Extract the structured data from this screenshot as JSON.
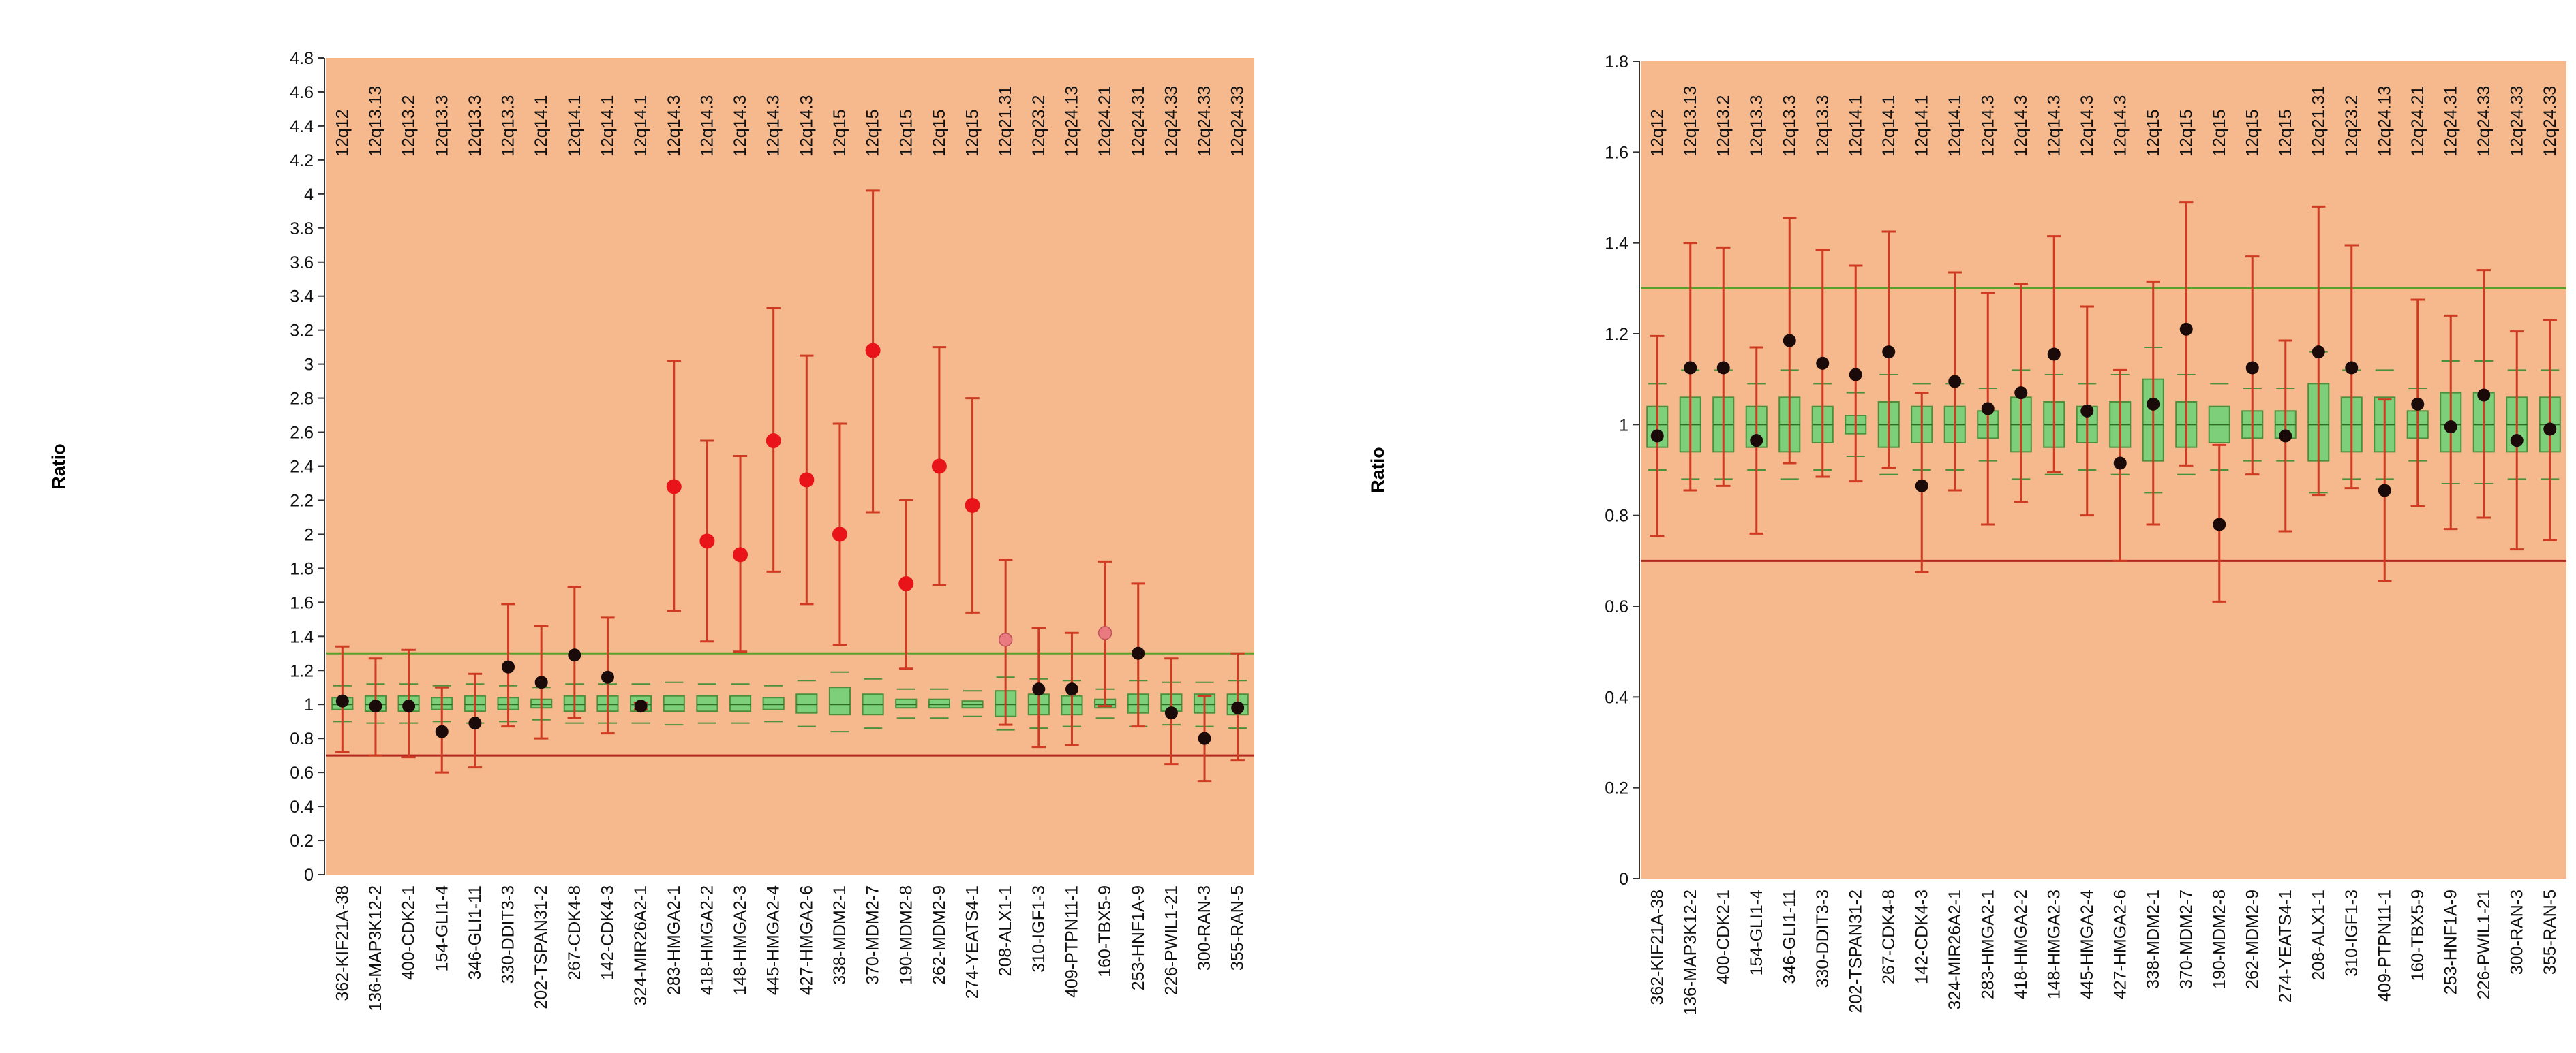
{
  "colors": {
    "plot_background": "#f5b98d",
    "upper_threshold_line": "#5aa02c",
    "lower_threshold_line": "#b0281e",
    "reference_box_fill": "#7dcf7a",
    "reference_box_edge": "#4c8f3d",
    "error_bar": "#cf3a22",
    "point_normal": "#1a0a0a",
    "point_gain": "#e8141a",
    "point_borderline": "#e87a80"
  },
  "chart_data": [
    {
      "type": "box-and-error-bar",
      "ylabel": "Ratio",
      "xlabel": "",
      "ylim": [
        0,
        4.8
      ],
      "yticks": [
        "0",
        "0.2",
        "0.4",
        "0.6",
        "0.8",
        "1",
        "1.2",
        "1.4",
        "1.6",
        "1.8",
        "2",
        "2.2",
        "2.4",
        "2.6",
        "2.8",
        "3",
        "3.2",
        "3.4",
        "3.6",
        "3.8",
        "4",
        "4.2",
        "4.4",
        "4.6",
        "4.8"
      ],
      "thresholds": {
        "upper": 1.3,
        "lower": 0.7
      },
      "categories": [
        "362-KIF21A-38",
        "136-MAP3K12-2",
        "400-CDK2-1",
        "154-GLI1-4",
        "346-GLI1-11",
        "330-DDIT3-3",
        "202-TSPAN31-2",
        "267-CDK4-8",
        "142-CDK4-3",
        "324-MIR26A2-1",
        "283-HMGA2-1",
        "418-HMGA2-2",
        "148-HMGA2-3",
        "445-HMGA2-4",
        "427-HMGA2-6",
        "338-MDM2-1",
        "370-MDM2-7",
        "190-MDM2-8",
        "262-MDM2-9",
        "274-YEATS4-1",
        "208-ALX1-1",
        "310-IGF1-3",
        "409-PTPN11-1",
        "160-TBX5-9",
        "253-HNF1A-9",
        "226-PWIL1-21",
        "300-RAN-3",
        "355-RAN-5"
      ],
      "bands": [
        "12q12",
        "12q13.13",
        "12q13.2",
        "12q13.3",
        "12q13.3",
        "12q13.3",
        "12q14.1",
        "12q14.1",
        "12q14.1",
        "12q14.1",
        "12q14.3",
        "12q14.3",
        "12q14.3",
        "12q14.3",
        "12q14.3",
        "12q15",
        "12q15",
        "12q15",
        "12q15",
        "12q15",
        "12q21.31",
        "12q23.2",
        "12q24.13",
        "12q24.21",
        "12q24.31",
        "12q24.33",
        "12q24.33",
        "12q24.33"
      ],
      "ratio": [
        1.02,
        0.99,
        0.99,
        0.84,
        0.89,
        1.22,
        1.13,
        1.29,
        1.16,
        0.99,
        2.28,
        1.96,
        1.88,
        2.55,
        2.32,
        2.0,
        3.08,
        1.71,
        2.4,
        2.17,
        1.38,
        1.09,
        1.09,
        1.42,
        1.3,
        0.95,
        0.8,
        0.98
      ],
      "error_low": [
        0.72,
        0.7,
        0.69,
        0.6,
        0.63,
        0.87,
        0.8,
        0.92,
        0.83,
        0.97,
        1.55,
        1.37,
        1.31,
        1.78,
        1.59,
        1.35,
        2.13,
        1.21,
        1.7,
        1.54,
        0.88,
        0.75,
        0.76,
        0.99,
        0.87,
        0.65,
        0.55,
        0.67
      ],
      "error_high": [
        1.34,
        1.27,
        1.32,
        1.1,
        1.18,
        1.59,
        1.46,
        1.69,
        1.51,
        1.01,
        3.02,
        2.55,
        2.46,
        3.33,
        3.05,
        2.65,
        4.02,
        2.2,
        3.1,
        2.8,
        1.85,
        1.45,
        1.42,
        1.84,
        1.71,
        1.27,
        1.05,
        1.3
      ],
      "ref_q1": [
        0.97,
        0.96,
        0.96,
        0.97,
        0.96,
        0.97,
        0.98,
        0.96,
        0.96,
        0.96,
        0.96,
        0.96,
        0.96,
        0.97,
        0.95,
        0.94,
        0.94,
        0.98,
        0.98,
        0.98,
        0.93,
        0.94,
        0.94,
        0.98,
        0.95,
        0.96,
        0.95,
        0.94
      ],
      "ref_q3": [
        1.04,
        1.05,
        1.05,
        1.04,
        1.05,
        1.04,
        1.03,
        1.05,
        1.05,
        1.05,
        1.05,
        1.05,
        1.05,
        1.04,
        1.06,
        1.1,
        1.06,
        1.03,
        1.03,
        1.02,
        1.08,
        1.06,
        1.05,
        1.03,
        1.06,
        1.06,
        1.06,
        1.06
      ],
      "ref_median": [
        1.0,
        1.0,
        1.0,
        1.0,
        1.0,
        1.0,
        1.0,
        1.0,
        1.0,
        1.0,
        1.0,
        1.0,
        1.0,
        1.0,
        1.0,
        1.0,
        1.0,
        1.0,
        1.0,
        1.0,
        1.0,
        1.0,
        1.0,
        1.0,
        1.0,
        1.0,
        1.0,
        1.0
      ],
      "ref_whisker_low": [
        0.9,
        0.89,
        0.89,
        0.9,
        0.89,
        0.9,
        0.91,
        0.89,
        0.89,
        0.89,
        0.88,
        0.89,
        0.89,
        0.9,
        0.87,
        0.84,
        0.86,
        0.92,
        0.92,
        0.93,
        0.85,
        0.86,
        0.87,
        0.92,
        0.87,
        0.88,
        0.87,
        0.86
      ],
      "ref_whisker_high": [
        1.11,
        1.12,
        1.12,
        1.11,
        1.12,
        1.11,
        1.1,
        1.12,
        1.12,
        1.12,
        1.13,
        1.12,
        1.12,
        1.11,
        1.14,
        1.19,
        1.15,
        1.09,
        1.09,
        1.08,
        1.16,
        1.15,
        1.14,
        1.09,
        1.14,
        1.13,
        1.13,
        1.14
      ],
      "point_status": [
        "normal",
        "normal",
        "normal",
        "normal",
        "normal",
        "normal",
        "normal",
        "normal",
        "normal",
        "normal",
        "gain",
        "gain",
        "gain",
        "gain",
        "gain",
        "gain",
        "gain",
        "gain",
        "gain",
        "gain",
        "borderline",
        "normal",
        "normal",
        "borderline",
        "normal",
        "normal",
        "normal",
        "normal"
      ]
    },
    {
      "type": "box-and-error-bar",
      "ylabel": "Ratio",
      "xlabel": "",
      "ylim": [
        0,
        1.8
      ],
      "yticks": [
        "0",
        "0.2",
        "0.4",
        "0.6",
        "0.8",
        "1",
        "1.2",
        "1.4",
        "1.6",
        "1.8"
      ],
      "thresholds": {
        "upper": 1.3,
        "lower": 0.7
      },
      "categories": [
        "362-KIF21A-38",
        "136-MAP3K12-2",
        "400-CDK2-1",
        "154-GLI1-4",
        "346-GLI1-11",
        "330-DDIT3-3",
        "202-TSPAN31-2",
        "267-CDK4-8",
        "142-CDK4-3",
        "324-MIR26A2-1",
        "283-HMGA2-1",
        "418-HMGA2-2",
        "148-HMGA2-3",
        "445-HMGA2-4",
        "427-HMGA2-6",
        "338-MDM2-1",
        "370-MDM2-7",
        "190-MDM2-8",
        "262-MDM2-9",
        "274-YEATS4-1",
        "208-ALX1-1",
        "310-IGF1-3",
        "409-PTPN11-1",
        "160-TBX5-9",
        "253-HNF1A-9",
        "226-PWIL1-21",
        "300-RAN-3",
        "355-RAN-5"
      ],
      "bands": [
        "12q12",
        "12q13.13",
        "12q13.2",
        "12q13.3",
        "12q13.3",
        "12q13.3",
        "12q14.1",
        "12q14.1",
        "12q14.1",
        "12q14.1",
        "12q14.3",
        "12q14.3",
        "12q14.3",
        "12q14.3",
        "12q14.3",
        "12q15",
        "12q15",
        "12q15",
        "12q15",
        "12q15",
        "12q21.31",
        "12q23.2",
        "12q24.13",
        "12q24.21",
        "12q24.31",
        "12q24.33",
        "12q24.33",
        "12q24.33"
      ],
      "ratio": [
        0.975,
        1.125,
        1.125,
        0.965,
        1.185,
        1.135,
        1.11,
        1.16,
        0.865,
        1.095,
        1.035,
        1.07,
        1.155,
        1.03,
        0.915,
        1.045,
        1.21,
        0.78,
        1.125,
        0.975,
        1.16,
        1.125,
        0.855,
        1.045,
        0.995,
        1.065,
        0.965,
        0.99
      ],
      "error_low": [
        0.755,
        0.855,
        0.865,
        0.76,
        0.915,
        0.885,
        0.875,
        0.905,
        0.675,
        0.855,
        0.78,
        0.83,
        0.895,
        0.8,
        0.7,
        0.78,
        0.91,
        0.61,
        0.89,
        0.765,
        0.845,
        0.86,
        0.655,
        0.82,
        0.77,
        0.795,
        0.725,
        0.745
      ],
      "error_high": [
        1.195,
        1.4,
        1.39,
        1.17,
        1.455,
        1.385,
        1.35,
        1.425,
        1.07,
        1.335,
        1.29,
        1.31,
        1.415,
        1.26,
        1.12,
        1.315,
        1.49,
        0.955,
        1.37,
        1.185,
        1.48,
        1.395,
        1.055,
        1.275,
        1.24,
        1.34,
        1.205,
        1.23
      ],
      "ref_q1": [
        0.95,
        0.94,
        0.94,
        0.95,
        0.94,
        0.96,
        0.98,
        0.95,
        0.96,
        0.96,
        0.97,
        0.94,
        0.95,
        0.96,
        0.95,
        0.92,
        0.95,
        0.96,
        0.97,
        0.97,
        0.92,
        0.94,
        0.94,
        0.97,
        0.94,
        0.94,
        0.94,
        0.94
      ],
      "ref_q3": [
        1.04,
        1.06,
        1.06,
        1.04,
        1.06,
        1.04,
        1.02,
        1.05,
        1.04,
        1.04,
        1.03,
        1.06,
        1.05,
        1.04,
        1.05,
        1.1,
        1.05,
        1.04,
        1.03,
        1.03,
        1.09,
        1.06,
        1.06,
        1.03,
        1.07,
        1.07,
        1.06,
        1.06
      ],
      "ref_median": [
        1.0,
        1.0,
        1.0,
        1.0,
        1.0,
        1.0,
        1.0,
        1.0,
        1.0,
        1.0,
        1.0,
        1.0,
        1.0,
        1.0,
        1.0,
        1.0,
        1.0,
        1.0,
        1.0,
        1.0,
        1.0,
        1.0,
        1.0,
        1.0,
        1.0,
        1.0,
        1.0,
        1.0
      ],
      "ref_whisker_low": [
        0.9,
        0.88,
        0.88,
        0.9,
        0.88,
        0.9,
        0.93,
        0.89,
        0.9,
        0.9,
        0.92,
        0.88,
        0.89,
        0.9,
        0.89,
        0.85,
        0.89,
        0.9,
        0.92,
        0.92,
        0.85,
        0.88,
        0.88,
        0.92,
        0.87,
        0.87,
        0.88,
        0.88
      ],
      "ref_whisker_high": [
        1.09,
        1.12,
        1.12,
        1.09,
        1.12,
        1.09,
        1.07,
        1.11,
        1.09,
        1.09,
        1.08,
        1.12,
        1.11,
        1.09,
        1.11,
        1.17,
        1.11,
        1.09,
        1.08,
        1.08,
        1.16,
        1.12,
        1.12,
        1.08,
        1.14,
        1.14,
        1.12,
        1.12
      ],
      "point_status": [
        "normal",
        "normal",
        "normal",
        "normal",
        "normal",
        "normal",
        "normal",
        "normal",
        "normal",
        "normal",
        "normal",
        "normal",
        "normal",
        "normal",
        "normal",
        "normal",
        "normal",
        "normal",
        "normal",
        "normal",
        "normal",
        "normal",
        "normal",
        "normal",
        "normal",
        "normal",
        "normal",
        "normal"
      ]
    }
  ]
}
